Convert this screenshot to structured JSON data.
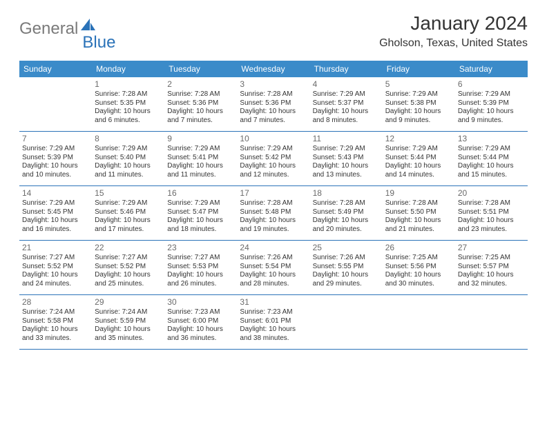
{
  "brand": {
    "part1": "General",
    "part2": "Blue"
  },
  "title": "January 2024",
  "location": "Gholson, Texas, United States",
  "colors": {
    "header_bg": "#3b8bc9",
    "border": "#2a72b8",
    "text": "#333333",
    "daynum": "#6a6a6a",
    "logo_gray": "#7a7a7a",
    "logo_blue": "#2a72b8",
    "background": "#ffffff"
  },
  "day_headers": [
    "Sunday",
    "Monday",
    "Tuesday",
    "Wednesday",
    "Thursday",
    "Friday",
    "Saturday"
  ],
  "weeks": [
    [
      {
        "num": "",
        "sunrise": "",
        "sunset": "",
        "daylight": ""
      },
      {
        "num": "1",
        "sunrise": "Sunrise: 7:28 AM",
        "sunset": "Sunset: 5:35 PM",
        "daylight": "Daylight: 10 hours and 6 minutes."
      },
      {
        "num": "2",
        "sunrise": "Sunrise: 7:28 AM",
        "sunset": "Sunset: 5:36 PM",
        "daylight": "Daylight: 10 hours and 7 minutes."
      },
      {
        "num": "3",
        "sunrise": "Sunrise: 7:28 AM",
        "sunset": "Sunset: 5:36 PM",
        "daylight": "Daylight: 10 hours and 7 minutes."
      },
      {
        "num": "4",
        "sunrise": "Sunrise: 7:29 AM",
        "sunset": "Sunset: 5:37 PM",
        "daylight": "Daylight: 10 hours and 8 minutes."
      },
      {
        "num": "5",
        "sunrise": "Sunrise: 7:29 AM",
        "sunset": "Sunset: 5:38 PM",
        "daylight": "Daylight: 10 hours and 9 minutes."
      },
      {
        "num": "6",
        "sunrise": "Sunrise: 7:29 AM",
        "sunset": "Sunset: 5:39 PM",
        "daylight": "Daylight: 10 hours and 9 minutes."
      }
    ],
    [
      {
        "num": "7",
        "sunrise": "Sunrise: 7:29 AM",
        "sunset": "Sunset: 5:39 PM",
        "daylight": "Daylight: 10 hours and 10 minutes."
      },
      {
        "num": "8",
        "sunrise": "Sunrise: 7:29 AM",
        "sunset": "Sunset: 5:40 PM",
        "daylight": "Daylight: 10 hours and 11 minutes."
      },
      {
        "num": "9",
        "sunrise": "Sunrise: 7:29 AM",
        "sunset": "Sunset: 5:41 PM",
        "daylight": "Daylight: 10 hours and 11 minutes."
      },
      {
        "num": "10",
        "sunrise": "Sunrise: 7:29 AM",
        "sunset": "Sunset: 5:42 PM",
        "daylight": "Daylight: 10 hours and 12 minutes."
      },
      {
        "num": "11",
        "sunrise": "Sunrise: 7:29 AM",
        "sunset": "Sunset: 5:43 PM",
        "daylight": "Daylight: 10 hours and 13 minutes."
      },
      {
        "num": "12",
        "sunrise": "Sunrise: 7:29 AM",
        "sunset": "Sunset: 5:44 PM",
        "daylight": "Daylight: 10 hours and 14 minutes."
      },
      {
        "num": "13",
        "sunrise": "Sunrise: 7:29 AM",
        "sunset": "Sunset: 5:44 PM",
        "daylight": "Daylight: 10 hours and 15 minutes."
      }
    ],
    [
      {
        "num": "14",
        "sunrise": "Sunrise: 7:29 AM",
        "sunset": "Sunset: 5:45 PM",
        "daylight": "Daylight: 10 hours and 16 minutes."
      },
      {
        "num": "15",
        "sunrise": "Sunrise: 7:29 AM",
        "sunset": "Sunset: 5:46 PM",
        "daylight": "Daylight: 10 hours and 17 minutes."
      },
      {
        "num": "16",
        "sunrise": "Sunrise: 7:29 AM",
        "sunset": "Sunset: 5:47 PM",
        "daylight": "Daylight: 10 hours and 18 minutes."
      },
      {
        "num": "17",
        "sunrise": "Sunrise: 7:28 AM",
        "sunset": "Sunset: 5:48 PM",
        "daylight": "Daylight: 10 hours and 19 minutes."
      },
      {
        "num": "18",
        "sunrise": "Sunrise: 7:28 AM",
        "sunset": "Sunset: 5:49 PM",
        "daylight": "Daylight: 10 hours and 20 minutes."
      },
      {
        "num": "19",
        "sunrise": "Sunrise: 7:28 AM",
        "sunset": "Sunset: 5:50 PM",
        "daylight": "Daylight: 10 hours and 21 minutes."
      },
      {
        "num": "20",
        "sunrise": "Sunrise: 7:28 AM",
        "sunset": "Sunset: 5:51 PM",
        "daylight": "Daylight: 10 hours and 23 minutes."
      }
    ],
    [
      {
        "num": "21",
        "sunrise": "Sunrise: 7:27 AM",
        "sunset": "Sunset: 5:52 PM",
        "daylight": "Daylight: 10 hours and 24 minutes."
      },
      {
        "num": "22",
        "sunrise": "Sunrise: 7:27 AM",
        "sunset": "Sunset: 5:52 PM",
        "daylight": "Daylight: 10 hours and 25 minutes."
      },
      {
        "num": "23",
        "sunrise": "Sunrise: 7:27 AM",
        "sunset": "Sunset: 5:53 PM",
        "daylight": "Daylight: 10 hours and 26 minutes."
      },
      {
        "num": "24",
        "sunrise": "Sunrise: 7:26 AM",
        "sunset": "Sunset: 5:54 PM",
        "daylight": "Daylight: 10 hours and 28 minutes."
      },
      {
        "num": "25",
        "sunrise": "Sunrise: 7:26 AM",
        "sunset": "Sunset: 5:55 PM",
        "daylight": "Daylight: 10 hours and 29 minutes."
      },
      {
        "num": "26",
        "sunrise": "Sunrise: 7:25 AM",
        "sunset": "Sunset: 5:56 PM",
        "daylight": "Daylight: 10 hours and 30 minutes."
      },
      {
        "num": "27",
        "sunrise": "Sunrise: 7:25 AM",
        "sunset": "Sunset: 5:57 PM",
        "daylight": "Daylight: 10 hours and 32 minutes."
      }
    ],
    [
      {
        "num": "28",
        "sunrise": "Sunrise: 7:24 AM",
        "sunset": "Sunset: 5:58 PM",
        "daylight": "Daylight: 10 hours and 33 minutes."
      },
      {
        "num": "29",
        "sunrise": "Sunrise: 7:24 AM",
        "sunset": "Sunset: 5:59 PM",
        "daylight": "Daylight: 10 hours and 35 minutes."
      },
      {
        "num": "30",
        "sunrise": "Sunrise: 7:23 AM",
        "sunset": "Sunset: 6:00 PM",
        "daylight": "Daylight: 10 hours and 36 minutes."
      },
      {
        "num": "31",
        "sunrise": "Sunrise: 7:23 AM",
        "sunset": "Sunset: 6:01 PM",
        "daylight": "Daylight: 10 hours and 38 minutes."
      },
      {
        "num": "",
        "sunrise": "",
        "sunset": "",
        "daylight": ""
      },
      {
        "num": "",
        "sunrise": "",
        "sunset": "",
        "daylight": ""
      },
      {
        "num": "",
        "sunrise": "",
        "sunset": "",
        "daylight": ""
      }
    ]
  ]
}
